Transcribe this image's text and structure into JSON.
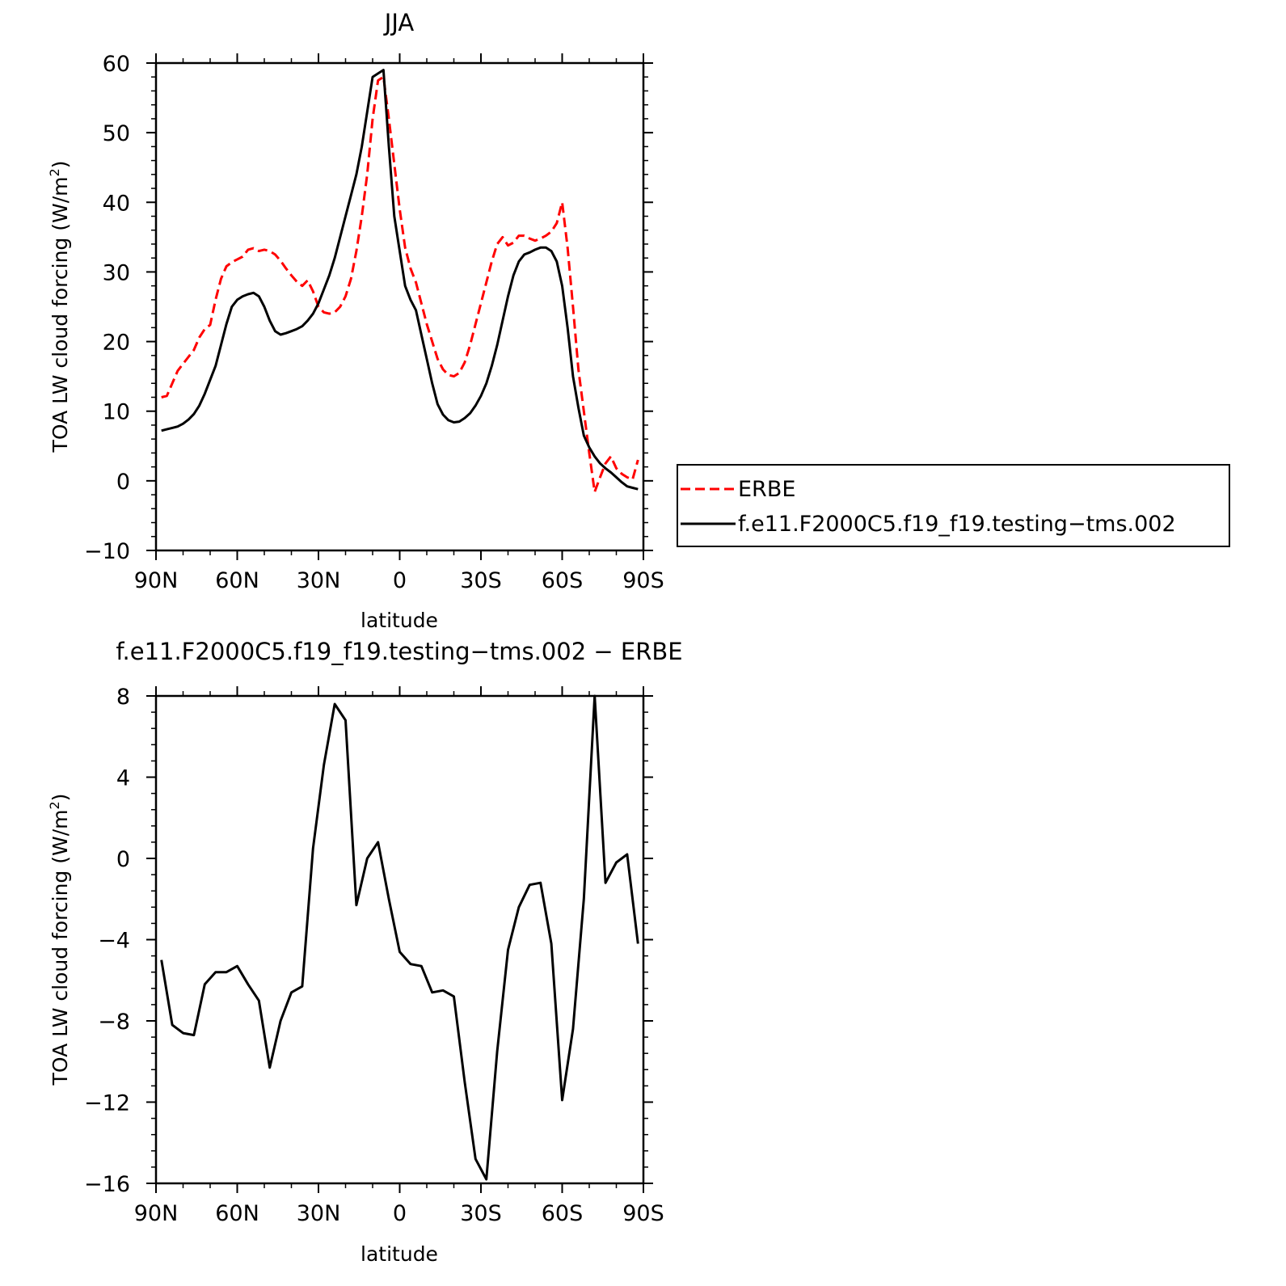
{
  "colors": {
    "obs": "#ff0000",
    "model": "#000000",
    "axes": "#000000",
    "background": "#ffffff"
  },
  "chart_data": [
    {
      "type": "line",
      "title": "JJA",
      "xlabel": "latitude",
      "ylabel": "TOA LW cloud forcing (W/m²)",
      "ylabel_main": "TOA LW cloud forcing (W/m",
      "ylabel_sup": "2",
      "ylabel_tail": ")",
      "xlim": [
        "90N",
        "90S"
      ],
      "ylim": [
        -10,
        60
      ],
      "xticks": [
        "90N",
        "60N",
        "30N",
        "0",
        "30S",
        "60S",
        "90S"
      ],
      "yticks": [
        "−10",
        "0",
        "10",
        "20",
        "30",
        "40",
        "50",
        "60"
      ],
      "ytick_values": [
        -10,
        0,
        10,
        20,
        30,
        40,
        50,
        60
      ],
      "grid": false,
      "legend_position": "right",
      "x": [
        "88N",
        "86N",
        "84N",
        "82N",
        "80N",
        "78N",
        "76N",
        "74N",
        "72N",
        "70N",
        "68N",
        "66N",
        "64N",
        "62N",
        "60N",
        "58N",
        "56N",
        "54N",
        "52N",
        "50N",
        "48N",
        "46N",
        "44N",
        "42N",
        "40N",
        "38N",
        "36N",
        "34N",
        "32N",
        "30N",
        "28N",
        "26N",
        "24N",
        "22N",
        "20N",
        "18N",
        "16N",
        "14N",
        "12N",
        "10N",
        "8N",
        "6N",
        "4N",
        "2N",
        "0",
        "2S",
        "4S",
        "6S",
        "8S",
        "10S",
        "12S",
        "14S",
        "16S",
        "18S",
        "20S",
        "22S",
        "24S",
        "26S",
        "28S",
        "30S",
        "32S",
        "34S",
        "36S",
        "38S",
        "40S",
        "42S",
        "44S",
        "46S",
        "48S",
        "50S",
        "52S",
        "54S",
        "56S",
        "58S",
        "60S",
        "62S",
        "64S",
        "66S",
        "68S",
        "70S",
        "72S",
        "74S",
        "76S",
        "78S",
        "80S",
        "82S",
        "84S",
        "86S",
        "88S"
      ],
      "series": [
        {
          "name": "ERBE",
          "style": "dashed",
          "color": "#ff0000",
          "values": [
            12.0,
            12.2,
            14.0,
            15.8,
            16.8,
            17.8,
            18.8,
            20.6,
            21.8,
            22.4,
            26.0,
            29.0,
            30.8,
            31.4,
            31.8,
            32.2,
            33.2,
            33.4,
            33.0,
            33.2,
            33.0,
            32.5,
            31.6,
            30.5,
            29.5,
            28.6,
            28.0,
            28.8,
            27.2,
            25.0,
            24.2,
            24.0,
            24.2,
            25.0,
            26.5,
            29.0,
            33.0,
            38.0,
            44.0,
            52.0,
            57.5,
            58.0,
            52.0,
            45.5,
            39.0,
            33.5,
            30.5,
            28.5,
            25.5,
            22.5,
            20.0,
            17.5,
            16.0,
            15.2,
            15.0,
            15.5,
            17.0,
            19.5,
            22.5,
            25.5,
            28.5,
            31.5,
            34.0,
            35.0,
            33.8,
            34.2,
            35.2,
            35.2,
            34.8,
            34.5,
            34.8,
            35.2,
            35.8,
            37.0,
            40.0,
            33.5,
            25.0,
            16.0,
            10.0,
            4.0,
            -1.6,
            0.5,
            2.5,
            3.5,
            1.8,
            1.0,
            0.5,
            0.2,
            3.0
          ]
        },
        {
          "name": "f.e11.F2000C5.f19_f19.testing−tms.002",
          "style": "solid",
          "color": "#000000",
          "values": [
            7.2,
            7.4,
            7.6,
            7.8,
            8.2,
            8.8,
            9.6,
            10.8,
            12.5,
            14.5,
            16.5,
            19.5,
            22.5,
            25.0,
            26.0,
            26.5,
            26.8,
            27.0,
            26.5,
            25.0,
            23.0,
            21.5,
            21.0,
            21.2,
            21.5,
            21.8,
            22.2,
            23.0,
            24.0,
            25.5,
            27.5,
            29.5,
            32.0,
            35.0,
            38.0,
            41.0,
            44.0,
            48.0,
            53.0,
            58.0,
            58.5,
            59.0,
            48.0,
            38.0,
            33.0,
            28.0,
            26.0,
            24.5,
            21.0,
            17.5,
            14.0,
            11.0,
            9.5,
            8.7,
            8.4,
            8.5,
            9.0,
            9.7,
            10.8,
            12.2,
            14.0,
            16.5,
            19.5,
            23.0,
            26.5,
            29.5,
            31.5,
            32.5,
            32.8,
            33.2,
            33.5,
            33.5,
            33.0,
            31.5,
            28.0,
            22.0,
            15.0,
            10.5,
            6.5,
            4.8,
            3.5,
            2.5,
            1.8,
            1.2,
            0.5,
            -0.2,
            -0.8,
            -1.0,
            -1.2
          ]
        }
      ]
    },
    {
      "type": "line",
      "title": "f.e11.F2000C5.f19_f19.testing−tms.002 − ERBE",
      "xlabel": "latitude",
      "ylabel": "TOA LW cloud forcing (W/m²)",
      "ylabel_main": "TOA LW cloud forcing (W/m",
      "ylabel_sup": "2",
      "ylabel_tail": ")",
      "xlim": [
        "90N",
        "90S"
      ],
      "ylim": [
        -16,
        8
      ],
      "xticks": [
        "90N",
        "60N",
        "30N",
        "0",
        "30S",
        "60S",
        "90S"
      ],
      "yticks": [
        "−16",
        "−12",
        "−8",
        "−4",
        "0",
        "4",
        "8"
      ],
      "ytick_values": [
        -16,
        -12,
        -8,
        -4,
        0,
        4,
        8
      ],
      "grid": false,
      "x": [
        "88N",
        "84N",
        "80N",
        "76N",
        "72N",
        "68N",
        "64N",
        "60N",
        "56N",
        "52N",
        "48N",
        "44N",
        "40N",
        "36N",
        "32N",
        "28N",
        "24N",
        "20N",
        "16N",
        "12N",
        "8N",
        "4N",
        "0",
        "4S",
        "8S",
        "12S",
        "16S",
        "20S",
        "24S",
        "28S",
        "32S",
        "36S",
        "40S",
        "44S",
        "48S",
        "52S",
        "56S",
        "60S",
        "64S",
        "68S",
        "72S",
        "76S",
        "80S",
        "84S",
        "88S"
      ],
      "series": [
        {
          "name": "f.e11.F2000C5.f19_f19.testing−tms.002 − ERBE",
          "style": "solid",
          "color": "#000000",
          "values": [
            -5.0,
            -8.2,
            -8.6,
            -8.7,
            -6.2,
            -5.6,
            -5.6,
            -5.3,
            -6.2,
            -7.0,
            -10.3,
            -8.0,
            -6.6,
            -6.3,
            0.5,
            4.6,
            7.6,
            6.8,
            -2.3,
            0.0,
            0.8,
            -2.0,
            -4.6,
            -5.2,
            -5.3,
            -6.6,
            -6.5,
            -6.8,
            -11.0,
            -14.8,
            -15.8,
            -9.5,
            -4.5,
            -2.4,
            -1.3,
            -1.2,
            -4.2,
            -11.9,
            -8.4,
            -2.0,
            8.0,
            -1.2,
            -0.2,
            0.2,
            -4.2
          ]
        }
      ]
    }
  ],
  "legend": {
    "entries": [
      {
        "label": "ERBE",
        "style": "dashed",
        "color": "#ff0000"
      },
      {
        "label": "f.e11.F2000C5.f19_f19.testing−tms.002",
        "style": "solid",
        "color": "#000000"
      }
    ]
  }
}
